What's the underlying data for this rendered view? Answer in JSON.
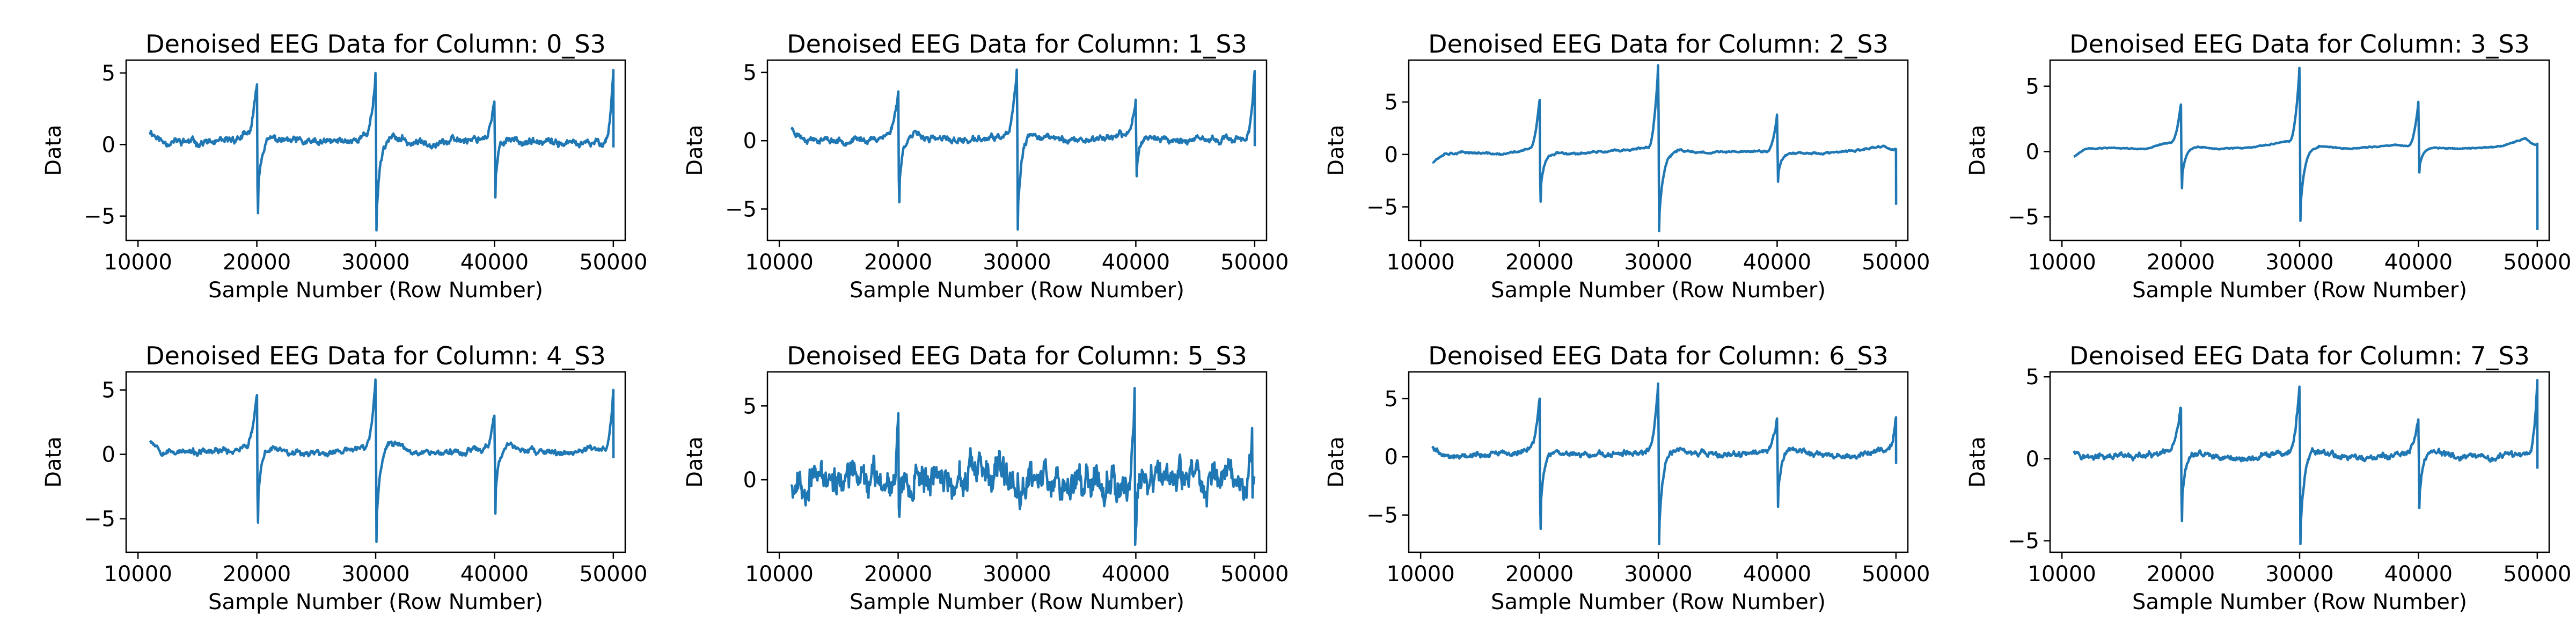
{
  "figure": {
    "background": "#ffffff",
    "line_color": "#1f77b4"
  },
  "chart_data": [
    {
      "type": "line",
      "title": "Denoised EEG Data for Column: 0_S3",
      "xlabel": "Sample Number (Row Number)",
      "ylabel": "Data",
      "xlim": [
        9000,
        51000
      ],
      "ylim": [
        -6.7,
        5.9
      ],
      "xticks": [
        10000,
        20000,
        30000,
        40000,
        50000
      ],
      "yticks": [
        -5,
        0,
        5
      ],
      "x_range": [
        11000,
        50000
      ],
      "baseline": [
        [
          11000,
          1.0
        ],
        [
          12000,
          0.2
        ],
        [
          14000,
          0.2
        ],
        [
          17000,
          0.1
        ],
        [
          19000,
          0.6
        ],
        [
          20500,
          0.6
        ],
        [
          22000,
          0.3
        ],
        [
          25000,
          0.1
        ],
        [
          28000,
          0.3
        ],
        [
          29500,
          0.7
        ],
        [
          30500,
          0.8
        ],
        [
          33000,
          0.1
        ],
        [
          36000,
          0.2
        ],
        [
          39000,
          0.5
        ],
        [
          40500,
          0.6
        ],
        [
          43000,
          0.1
        ],
        [
          46000,
          0.1
        ],
        [
          48000,
          0.0
        ],
        [
          49500,
          0.3
        ],
        [
          50000,
          0.4
        ]
      ],
      "spikes": [
        {
          "x": 20000,
          "up": 4.2,
          "down": -4.8,
          "rise": 900,
          "recover": 1300
        },
        {
          "x": 30000,
          "up": 5.0,
          "down": -6.0,
          "rise": 900,
          "recover": 1500
        },
        {
          "x": 40000,
          "up": 3.0,
          "down": -3.7,
          "rise": 900,
          "recover": 1200
        },
        {
          "x": 50000,
          "up": 5.2,
          "down": -0.2,
          "rise": 700,
          "recover": 0
        }
      ],
      "noise": 0.55,
      "seed": 11
    },
    {
      "type": "line",
      "title": "Denoised EEG Data for Column: 1_S3",
      "xlabel": "Sample Number (Row Number)",
      "ylabel": "Data",
      "xlim": [
        9000,
        51000
      ],
      "ylim": [
        -7.3,
        5.9
      ],
      "xticks": [
        10000,
        20000,
        30000,
        40000,
        50000
      ],
      "yticks": [
        -5,
        0,
        5
      ],
      "x_range": [
        11000,
        50000
      ],
      "baseline": [
        [
          11000,
          0.9
        ],
        [
          12000,
          0.2
        ],
        [
          15000,
          0.0
        ],
        [
          18000,
          0.1
        ],
        [
          19500,
          0.6
        ],
        [
          21000,
          0.5
        ],
        [
          23000,
          0.1
        ],
        [
          26000,
          0.0
        ],
        [
          29000,
          0.3
        ],
        [
          30500,
          0.8
        ],
        [
          32000,
          0.3
        ],
        [
          35000,
          0.0
        ],
        [
          38000,
          0.3
        ],
        [
          40500,
          0.5
        ],
        [
          42000,
          0.1
        ],
        [
          45000,
          0.0
        ],
        [
          48000,
          0.1
        ],
        [
          49500,
          0.3
        ],
        [
          50000,
          0.4
        ]
      ],
      "spikes": [
        {
          "x": 20000,
          "up": 3.6,
          "down": -4.5,
          "rise": 900,
          "recover": 1300
        },
        {
          "x": 30000,
          "up": 5.2,
          "down": -6.5,
          "rise": 900,
          "recover": 1500
        },
        {
          "x": 40000,
          "up": 3.0,
          "down": -2.6,
          "rise": 900,
          "recover": 1200
        },
        {
          "x": 50000,
          "up": 5.1,
          "down": -0.4,
          "rise": 700,
          "recover": 0
        }
      ],
      "noise": 0.5,
      "seed": 23
    },
    {
      "type": "line",
      "title": "Denoised EEG Data for Column: 2_S3",
      "xlabel": "Sample Number (Row Number)",
      "ylabel": "Data",
      "xlim": [
        9000,
        51000
      ],
      "ylim": [
        -8.2,
        9.0
      ],
      "xticks": [
        10000,
        20000,
        30000,
        40000,
        50000
      ],
      "yticks": [
        -5,
        0,
        5
      ],
      "x_range": [
        11000,
        50000
      ],
      "baseline": [
        [
          11000,
          -0.7
        ],
        [
          12000,
          0.1
        ],
        [
          14000,
          0.2
        ],
        [
          17000,
          0.0
        ],
        [
          19000,
          0.5
        ],
        [
          21000,
          0.2
        ],
        [
          23000,
          0.1
        ],
        [
          26000,
          0.3
        ],
        [
          29000,
          0.6
        ],
        [
          31000,
          0.4
        ],
        [
          34000,
          0.2
        ],
        [
          38000,
          0.3
        ],
        [
          41000,
          0.2
        ],
        [
          44000,
          0.1
        ],
        [
          47000,
          0.4
        ],
        [
          49000,
          0.8
        ],
        [
          50000,
          0.2
        ]
      ],
      "spikes": [
        {
          "x": 20000,
          "up": 5.2,
          "down": -4.5,
          "rise": 900,
          "recover": 1400
        },
        {
          "x": 30000,
          "up": 8.5,
          "down": -7.3,
          "rise": 900,
          "recover": 1600
        },
        {
          "x": 40000,
          "up": 3.8,
          "down": -2.6,
          "rise": 900,
          "recover": 1300
        },
        {
          "x": 50000,
          "up": 0.5,
          "down": -4.8,
          "rise": 500,
          "recover": 0
        }
      ],
      "noise": 0.2,
      "seed": 37
    },
    {
      "type": "line",
      "title": "Denoised EEG Data for Column: 3_S3",
      "xlabel": "Sample Number (Row Number)",
      "ylabel": "Data",
      "xlim": [
        9000,
        51000
      ],
      "ylim": [
        -6.8,
        7.0
      ],
      "xticks": [
        10000,
        20000,
        30000,
        40000,
        50000
      ],
      "yticks": [
        -5,
        0,
        5
      ],
      "x_range": [
        11000,
        50000
      ],
      "baseline": [
        [
          11000,
          -0.4
        ],
        [
          12000,
          0.2
        ],
        [
          14000,
          0.3
        ],
        [
          17000,
          0.2
        ],
        [
          19000,
          0.7
        ],
        [
          21000,
          0.4
        ],
        [
          23000,
          0.2
        ],
        [
          26000,
          0.3
        ],
        [
          29000,
          0.8
        ],
        [
          31000,
          0.5
        ],
        [
          34000,
          0.2
        ],
        [
          38000,
          0.5
        ],
        [
          41000,
          0.3
        ],
        [
          44000,
          0.2
        ],
        [
          47000,
          0.4
        ],
        [
          49000,
          1.0
        ],
        [
          50000,
          0.3
        ]
      ],
      "spikes": [
        {
          "x": 20000,
          "up": 3.6,
          "down": -2.8,
          "rise": 900,
          "recover": 1400
        },
        {
          "x": 30000,
          "up": 6.4,
          "down": -5.3,
          "rise": 900,
          "recover": 1600
        },
        {
          "x": 40000,
          "up": 3.8,
          "down": -1.6,
          "rise": 900,
          "recover": 1300
        },
        {
          "x": 50000,
          "up": 0.6,
          "down": -6.0,
          "rise": 500,
          "recover": 0
        }
      ],
      "noise": 0.08,
      "seed": 41
    },
    {
      "type": "line",
      "title": "Denoised EEG Data for Column: 4_S3",
      "xlabel": "Sample Number (Row Number)",
      "ylabel": "Data",
      "xlim": [
        9000,
        51000
      ],
      "ylim": [
        -7.6,
        6.4
      ],
      "xticks": [
        10000,
        20000,
        30000,
        40000,
        50000
      ],
      "yticks": [
        -5,
        0,
        5
      ],
      "x_range": [
        11000,
        50000
      ],
      "baseline": [
        [
          11000,
          1.2
        ],
        [
          12000,
          0.3
        ],
        [
          15000,
          0.1
        ],
        [
          18000,
          0.3
        ],
        [
          19500,
          0.8
        ],
        [
          21000,
          0.6
        ],
        [
          23000,
          0.2
        ],
        [
          26000,
          0.1
        ],
        [
          29000,
          0.5
        ],
        [
          31000,
          1.2
        ],
        [
          33000,
          0.3
        ],
        [
          36000,
          0.1
        ],
        [
          39000,
          0.4
        ],
        [
          41000,
          0.8
        ],
        [
          43000,
          0.2
        ],
        [
          46000,
          0.1
        ],
        [
          48500,
          0.4
        ],
        [
          50000,
          0.5
        ]
      ],
      "spikes": [
        {
          "x": 20000,
          "up": 4.6,
          "down": -5.3,
          "rise": 900,
          "recover": 1300
        },
        {
          "x": 30000,
          "up": 5.8,
          "down": -6.8,
          "rise": 900,
          "recover": 1500
        },
        {
          "x": 40000,
          "up": 3.0,
          "down": -4.6,
          "rise": 900,
          "recover": 1300
        },
        {
          "x": 50000,
          "up": 5.0,
          "down": -0.3,
          "rise": 700,
          "recover": 0
        }
      ],
      "noise": 0.5,
      "seed": 53
    },
    {
      "type": "line",
      "title": "Denoised EEG Data for Column: 5_S3",
      "xlabel": "Sample Number (Row Number)",
      "ylabel": "Data",
      "xlim": [
        9000,
        51000
      ],
      "ylim": [
        -4.9,
        7.3
      ],
      "xticks": [
        10000,
        20000,
        30000,
        40000,
        50000
      ],
      "yticks": [
        -5,
        0,
        5
      ],
      "x_range": [
        11000,
        50000
      ],
      "baseline": [
        [
          11000,
          0.0
        ],
        [
          14000,
          0.1
        ],
        [
          18000,
          0.0
        ],
        [
          22000,
          0.2
        ],
        [
          26000,
          0.1
        ],
        [
          30000,
          0.1
        ],
        [
          34000,
          0.2
        ],
        [
          38000,
          0.0
        ],
        [
          42000,
          0.1
        ],
        [
          46000,
          0.0
        ],
        [
          50000,
          0.3
        ]
      ],
      "spikes": [
        {
          "x": 20000,
          "up": 4.5,
          "down": -2.5,
          "rise": 600,
          "recover": 800
        },
        {
          "x": 39900,
          "up": 6.2,
          "down": -3.5,
          "rise": 600,
          "recover": 800
        },
        {
          "x": 49800,
          "up": 3.5,
          "down": -1.2,
          "rise": 500,
          "recover": 0
        }
      ],
      "noise": 2.4,
      "seed": 67
    },
    {
      "type": "line",
      "title": "Denoised EEG Data for Column: 6_S3",
      "xlabel": "Sample Number (Row Number)",
      "ylabel": "Data",
      "xlim": [
        9000,
        51000
      ],
      "ylim": [
        -8.2,
        7.3
      ],
      "xticks": [
        10000,
        20000,
        30000,
        40000,
        50000
      ],
      "yticks": [
        -5,
        0,
        5
      ],
      "x_range": [
        11000,
        50000
      ],
      "baseline": [
        [
          11000,
          0.8
        ],
        [
          12000,
          0.1
        ],
        [
          15000,
          0.2
        ],
        [
          18000,
          0.3
        ],
        [
          19500,
          0.8
        ],
        [
          21000,
          0.5
        ],
        [
          23000,
          0.2
        ],
        [
          26000,
          0.1
        ],
        [
          29000,
          0.5
        ],
        [
          31000,
          0.8
        ],
        [
          33000,
          0.3
        ],
        [
          36000,
          0.1
        ],
        [
          39000,
          0.4
        ],
        [
          41000,
          0.8
        ],
        [
          43000,
          0.2
        ],
        [
          46000,
          0.0
        ],
        [
          48500,
          0.5
        ],
        [
          50000,
          0.6
        ]
      ],
      "spikes": [
        {
          "x": 20000,
          "up": 5.0,
          "down": -6.2,
          "rise": 900,
          "recover": 1300
        },
        {
          "x": 30000,
          "up": 6.3,
          "down": -7.5,
          "rise": 900,
          "recover": 1500
        },
        {
          "x": 40000,
          "up": 3.3,
          "down": -4.3,
          "rise": 900,
          "recover": 1300
        },
        {
          "x": 50000,
          "up": 3.4,
          "down": -0.6,
          "rise": 700,
          "recover": 0
        }
      ],
      "noise": 0.5,
      "seed": 79
    },
    {
      "type": "line",
      "title": "Denoised EEG Data for Column: 7_S3",
      "xlabel": "Sample Number (Row Number)",
      "ylabel": "Data",
      "xlim": [
        9000,
        51000
      ],
      "ylim": [
        -5.7,
        5.3
      ],
      "xticks": [
        10000,
        20000,
        30000,
        40000,
        50000
      ],
      "yticks": [
        -5,
        0,
        5
      ],
      "x_range": [
        11000,
        50000
      ],
      "baseline": [
        [
          11000,
          0.6
        ],
        [
          12000,
          0.1
        ],
        [
          15000,
          0.1
        ],
        [
          18000,
          0.2
        ],
        [
          19500,
          0.5
        ],
        [
          21000,
          0.4
        ],
        [
          23000,
          0.1
        ],
        [
          26000,
          0.0
        ],
        [
          29000,
          0.4
        ],
        [
          31000,
          0.6
        ],
        [
          33000,
          0.2
        ],
        [
          36000,
          0.0
        ],
        [
          39000,
          0.3
        ],
        [
          41000,
          0.6
        ],
        [
          43000,
          0.1
        ],
        [
          46000,
          0.0
        ],
        [
          48500,
          0.3
        ],
        [
          50000,
          0.4
        ]
      ],
      "spikes": [
        {
          "x": 20000,
          "up": 3.1,
          "down": -3.8,
          "rise": 900,
          "recover": 1300
        },
        {
          "x": 30000,
          "up": 4.4,
          "down": -5.2,
          "rise": 900,
          "recover": 1500
        },
        {
          "x": 40000,
          "up": 2.4,
          "down": -3.0,
          "rise": 900,
          "recover": 1300
        },
        {
          "x": 50000,
          "up": 4.8,
          "down": -0.6,
          "rise": 700,
          "recover": 0
        }
      ],
      "noise": 0.4,
      "seed": 97
    }
  ]
}
